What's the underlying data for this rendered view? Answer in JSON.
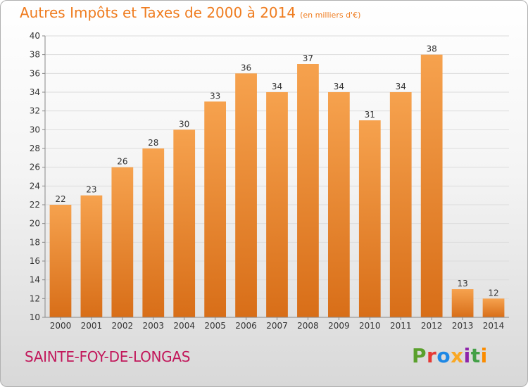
{
  "header": {
    "title": "Autres Impôts et Taxes de 2000 à 2014",
    "unit": "(en milliers d'€)"
  },
  "footer": {
    "commune": "SAINTE-FOY-DE-LONGAS",
    "logo_text": "Proxiti",
    "logo_colors": [
      "#5aa02c",
      "#e53935",
      "#1e88e5",
      "#f9a825",
      "#8e24aa",
      "#43a047",
      "#fb8c00"
    ]
  },
  "colors": {
    "bar_top": "#f6a24e",
    "bar_bottom": "#d86e18",
    "title": "#ef7c1f",
    "commune": "#c2185b"
  },
  "chart_data": {
    "type": "bar",
    "title": "Autres Impôts et Taxes de 2000 à 2014",
    "subtitle": "(en milliers d'€)",
    "categories": [
      "2000",
      "2001",
      "2002",
      "2003",
      "2004",
      "2005",
      "2006",
      "2007",
      "2008",
      "2009",
      "2010",
      "2011",
      "2012",
      "2013",
      "2014"
    ],
    "values": [
      22,
      23,
      26,
      28,
      30,
      33,
      36,
      34,
      37,
      34,
      31,
      34,
      38,
      13,
      12
    ],
    "ylim": [
      10,
      40
    ],
    "yticks": [
      10,
      12,
      14,
      16,
      18,
      20,
      22,
      24,
      26,
      28,
      30,
      32,
      34,
      36,
      38,
      40
    ],
    "grid": true,
    "data_labels": true
  }
}
